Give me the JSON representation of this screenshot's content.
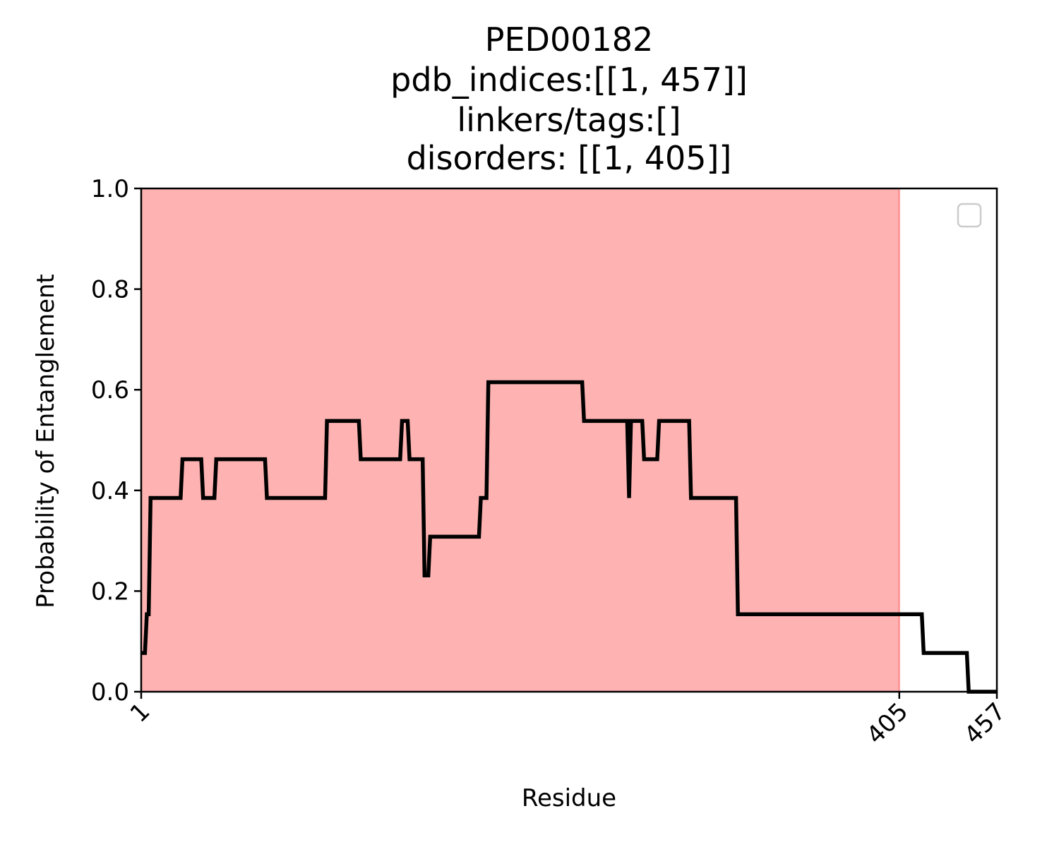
{
  "chart_data": {
    "type": "line",
    "title_lines": [
      "PED00182",
      "pdb_indices:[[1, 457]]",
      "linkers/tags:[]",
      "disorders: [[1, 405]]"
    ],
    "xlabel": "Residue",
    "ylabel": "Probability of Entanglement",
    "xlim": [
      1,
      457
    ],
    "ylim": [
      0.0,
      1.0
    ],
    "x_ticks": [
      1,
      405,
      457
    ],
    "x_tick_labels": [
      "1",
      "405",
      "457"
    ],
    "y_ticks": [
      0.0,
      0.2,
      0.4,
      0.6,
      0.8,
      1.0
    ],
    "y_tick_labels": [
      "0.0",
      "0.2",
      "0.4",
      "0.6",
      "0.8",
      "1.0"
    ],
    "grid": false,
    "legend": {
      "placement": "upper right",
      "entries": []
    },
    "shaded_regions": [
      {
        "start": 1,
        "end": 405,
        "color": "#ff0000",
        "alpha": 0.3
      }
    ],
    "series": [
      {
        "color": "#000000",
        "points": [
          [
            1,
            0.077
          ],
          [
            3,
            0.077
          ],
          [
            4,
            0.154
          ],
          [
            5,
            0.154
          ],
          [
            6,
            0.385
          ],
          [
            22,
            0.385
          ],
          [
            23,
            0.462
          ],
          [
            33,
            0.462
          ],
          [
            34,
            0.385
          ],
          [
            40,
            0.385
          ],
          [
            41,
            0.462
          ],
          [
            67,
            0.462
          ],
          [
            68,
            0.385
          ],
          [
            99,
            0.385
          ],
          [
            100,
            0.538
          ],
          [
            117,
            0.538
          ],
          [
            118,
            0.462
          ],
          [
            139,
            0.462
          ],
          [
            140,
            0.538
          ],
          [
            143,
            0.538
          ],
          [
            144,
            0.462
          ],
          [
            151,
            0.462
          ],
          [
            152,
            0.231
          ],
          [
            154,
            0.231
          ],
          [
            155,
            0.308
          ],
          [
            181,
            0.308
          ],
          [
            182,
            0.385
          ],
          [
            185,
            0.385
          ],
          [
            186,
            0.615
          ],
          [
            236,
            0.615
          ],
          [
            237,
            0.538
          ],
          [
            260,
            0.538
          ],
          [
            261,
            0.385
          ],
          [
            262,
            0.538
          ],
          [
            268,
            0.538
          ],
          [
            269,
            0.462
          ],
          [
            276,
            0.462
          ],
          [
            277,
            0.538
          ],
          [
            293,
            0.538
          ],
          [
            294,
            0.385
          ],
          [
            318,
            0.385
          ],
          [
            319,
            0.154
          ],
          [
            417,
            0.154
          ],
          [
            418,
            0.077
          ],
          [
            441,
            0.077
          ],
          [
            442,
            0.0
          ],
          [
            457,
            0.0
          ]
        ]
      }
    ]
  }
}
